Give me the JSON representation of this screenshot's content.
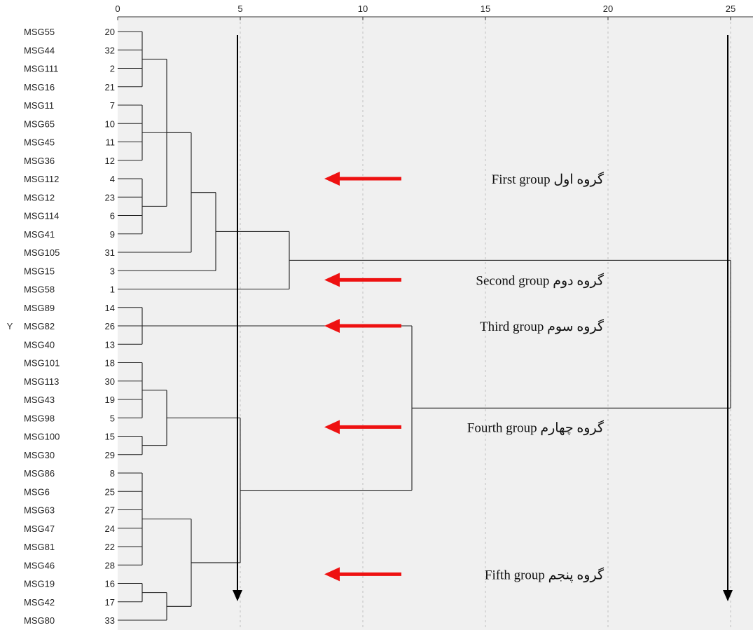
{
  "chart_data": {
    "type": "dendrogram",
    "xlim": [
      0,
      25
    ],
    "x_ticks": [
      0,
      5,
      10,
      15,
      20,
      25
    ],
    "grid": "vertical dotted at major ticks",
    "ylabel": "Y",
    "leaves": [
      {
        "label": "MSG55",
        "id": 20
      },
      {
        "label": "MSG44",
        "id": 32
      },
      {
        "label": "MSG111",
        "id": 2
      },
      {
        "label": "MSG16",
        "id": 21
      },
      {
        "label": "MSG11",
        "id": 7
      },
      {
        "label": "MSG65",
        "id": 10
      },
      {
        "label": "MSG45",
        "id": 11
      },
      {
        "label": "MSG36",
        "id": 12
      },
      {
        "label": "MSG112",
        "id": 4
      },
      {
        "label": "MSG12",
        "id": 23
      },
      {
        "label": "MSG114",
        "id": 6
      },
      {
        "label": "MSG41",
        "id": 9
      },
      {
        "label": "MSG105",
        "id": 31
      },
      {
        "label": "MSG15",
        "id": 3
      },
      {
        "label": "MSG58",
        "id": 1
      },
      {
        "label": "MSG89",
        "id": 14
      },
      {
        "label": "MSG82",
        "id": 26
      },
      {
        "label": "MSG40",
        "id": 13
      },
      {
        "label": "MSG101",
        "id": 18
      },
      {
        "label": "MSG113",
        "id": 30
      },
      {
        "label": "MSG43",
        "id": 19
      },
      {
        "label": "MSG98",
        "id": 5
      },
      {
        "label": "MSG100",
        "id": 15
      },
      {
        "label": "MSG30",
        "id": 29
      },
      {
        "label": "MSG86",
        "id": 8
      },
      {
        "label": "MSG6",
        "id": 25
      },
      {
        "label": "MSG63",
        "id": 27
      },
      {
        "label": "MSG47",
        "id": 24
      },
      {
        "label": "MSG81",
        "id": 22
      },
      {
        "label": "MSG46",
        "id": 28
      },
      {
        "label": "MSG19",
        "id": 16
      },
      {
        "label": "MSG42",
        "id": 17
      },
      {
        "label": "MSG80",
        "id": 33
      }
    ],
    "merges": [
      {
        "id": "A",
        "children": [
          "L0",
          "L1",
          "L2",
          "L3"
        ],
        "height": 1
      },
      {
        "id": "B",
        "children": [
          "L4",
          "L5",
          "L6",
          "L7"
        ],
        "height": 1
      },
      {
        "id": "C",
        "children": [
          "L8",
          "L9",
          "L10",
          "L11"
        ],
        "height": 1
      },
      {
        "id": "D",
        "children": [
          "A",
          "C"
        ],
        "height": 2
      },
      {
        "id": "E",
        "children": [
          "B",
          "D",
          "L12"
        ],
        "height": 3
      },
      {
        "id": "F",
        "children": [
          "E",
          "L13"
        ],
        "height": 4
      },
      {
        "id": "G",
        "children": [
          "F",
          "L14"
        ],
        "height": 7
      },
      {
        "id": "H",
        "children": [
          "L15",
          "L16",
          "L17"
        ],
        "height": 1
      },
      {
        "id": "I",
        "children": [
          "L18",
          "L19",
          "L20",
          "L21"
        ],
        "height": 1
      },
      {
        "id": "J",
        "children": [
          "L22",
          "L23"
        ],
        "height": 1
      },
      {
        "id": "K",
        "children": [
          "I",
          "J"
        ],
        "height": 2
      },
      {
        "id": "M",
        "children": [
          "L24",
          "L25",
          "L26",
          "L27",
          "L28",
          "L29"
        ],
        "height": 1
      },
      {
        "id": "N",
        "children": [
          "L30",
          "L31"
        ],
        "height": 1
      },
      {
        "id": "O",
        "children": [
          "N",
          "L32"
        ],
        "height": 2
      },
      {
        "id": "P",
        "children": [
          "M",
          "O"
        ],
        "height": 3
      },
      {
        "id": "Q",
        "children": [
          "K",
          "P"
        ],
        "height": 5
      },
      {
        "id": "R",
        "children": [
          "H",
          "Q"
        ],
        "height": 12
      },
      {
        "id": "S",
        "children": [
          "G",
          "R"
        ],
        "height": 25
      }
    ],
    "cut_lines": [
      5,
      25
    ],
    "annotations": [
      {
        "text": "First group",
        "fa": "گروه اول",
        "anchor_leaf": 8
      },
      {
        "text": "Second group",
        "fa": "گروه دوم",
        "anchor_leaf": 13.5
      },
      {
        "text": "Third group",
        "fa": "گروه سوم",
        "anchor_leaf": 16
      },
      {
        "text": "Fourth group",
        "fa": "گروه چهارم",
        "anchor_leaf": 21.5
      },
      {
        "text": "Fifth group",
        "fa": "گروه پنجم",
        "anchor_leaf": 29.5
      }
    ]
  }
}
